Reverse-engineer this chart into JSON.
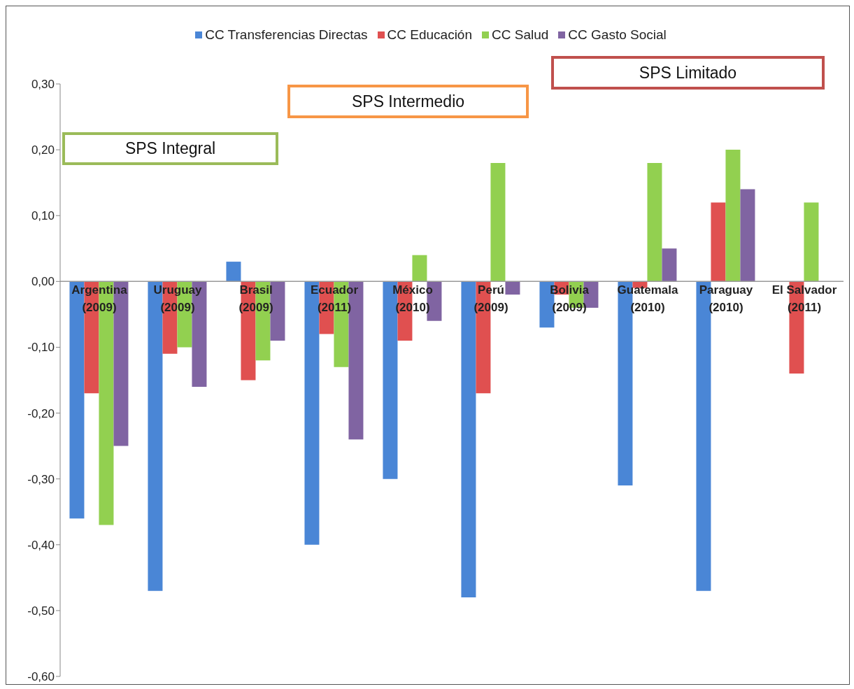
{
  "chart_data": {
    "type": "bar",
    "categories": [
      "Argentina\n(2009)",
      "Uruguay\n(2009)",
      "Brasil\n(2009)",
      "Ecuador\n(2011)",
      "México\n(2010)",
      "Perú\n(2009)",
      "Bolivia\n(2009)",
      "Guatemala\n(2010)",
      "Paraguay\n(2010)",
      "El Salvador\n(2011)"
    ],
    "series": [
      {
        "name": "CC Transferencias Directas",
        "color": "#4a86d6",
        "values": [
          -0.36,
          -0.47,
          0.03,
          -0.4,
          -0.3,
          -0.48,
          -0.07,
          -0.31,
          -0.47,
          null
        ]
      },
      {
        "name": "CC Educación",
        "color": "#e05050",
        "values": [
          -0.17,
          -0.11,
          -0.15,
          -0.08,
          -0.09,
          -0.17,
          -0.02,
          -0.01,
          0.12,
          -0.14
        ]
      },
      {
        "name": "CC Salud",
        "color": "#92d050",
        "values": [
          -0.37,
          -0.1,
          -0.12,
          -0.13,
          0.04,
          0.18,
          -0.04,
          0.18,
          0.2,
          0.12
        ]
      },
      {
        "name": "CC Gasto Social",
        "color": "#8064a2",
        "values": [
          -0.25,
          -0.16,
          -0.09,
          -0.24,
          -0.06,
          -0.02,
          -0.04,
          0.05,
          0.14,
          null
        ]
      }
    ],
    "ylim": [
      -0.6,
      0.3
    ],
    "yticks": [
      {
        "value": 0.3,
        "label": "0,30"
      },
      {
        "value": 0.2,
        "label": "0,20"
      },
      {
        "value": 0.1,
        "label": "0,10"
      },
      {
        "value": 0,
        "label": "0,00"
      },
      {
        "value": -0.1,
        "label": "-0,10"
      },
      {
        "value": -0.2,
        "label": "-0,20"
      },
      {
        "value": -0.3,
        "label": "-0,30"
      },
      {
        "value": -0.4,
        "label": "-0,40"
      },
      {
        "value": -0.5,
        "label": "-0,50"
      },
      {
        "value": -0.6,
        "label": "-0,60"
      }
    ],
    "grid": false,
    "legend": "top",
    "annotations": [
      "SPS Integral",
      "SPS Intermedio",
      "SPS Limitado"
    ]
  }
}
